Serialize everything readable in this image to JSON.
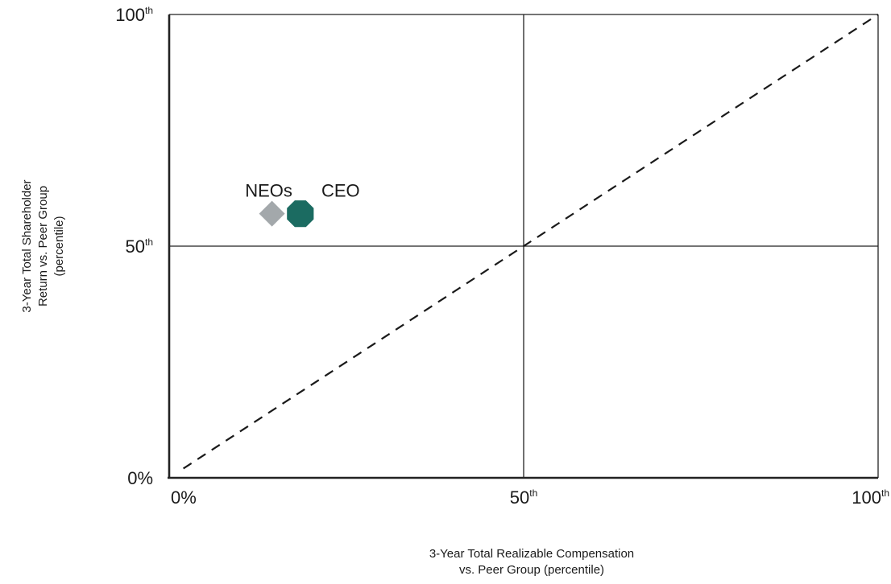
{
  "chart_data": {
    "type": "scatter",
    "xlabel_lines": [
      "3-Year Total Realizable Compensation",
      "vs. Peer Group (percentile)"
    ],
    "ylabel_lines": [
      "3-Year Total Shareholder",
      "Return vs. Peer Group",
      "(percentile)"
    ],
    "xlim": [
      0,
      100
    ],
    "ylim": [
      0,
      100
    ],
    "x_ticks": [
      {
        "value": 0,
        "main": "0%",
        "sup": ""
      },
      {
        "value": 50,
        "main": "50",
        "sup": "th"
      },
      {
        "value": 100,
        "main": "100",
        "sup": "th"
      }
    ],
    "y_ticks": [
      {
        "value": 0,
        "main": "0%",
        "sup": ""
      },
      {
        "value": 50,
        "main": "50",
        "sup": "th"
      },
      {
        "value": 100,
        "main": "100",
        "sup": "th"
      }
    ],
    "reference_lines": [
      {
        "orientation": "vertical",
        "value": 50
      },
      {
        "orientation": "horizontal",
        "value": 50
      }
    ],
    "diagonal": {
      "from": [
        2,
        2
      ],
      "to": [
        100,
        100
      ],
      "style": "dashed"
    },
    "points": [
      {
        "name": "NEOs",
        "x": 14.5,
        "y": 57,
        "marker": "diamond",
        "color": "#a3a8ab"
      },
      {
        "name": "CEO",
        "x": 18.5,
        "y": 57,
        "marker": "octagon",
        "color": "#1b6b61"
      }
    ],
    "grid": false
  }
}
